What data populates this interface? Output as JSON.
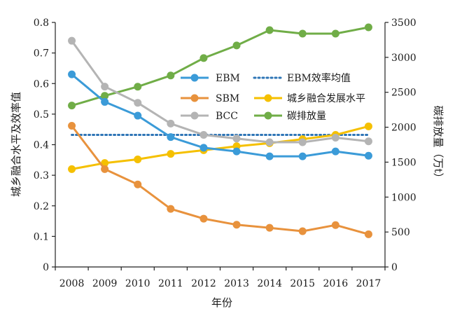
{
  "chart_data": {
    "type": "line",
    "xlabel": "年份",
    "ylabel_left": "城乡融合水平及效率值",
    "ylabel_right": "碳排放量（万t）",
    "x": [
      "2008",
      "2009",
      "2010",
      "2011",
      "2012",
      "2013",
      "2014",
      "2015",
      "2016",
      "2017"
    ],
    "ylim_left": [
      0,
      0.8
    ],
    "yticks_left": [
      "0",
      "0.1",
      "0.2",
      "0.3",
      "0.4",
      "0.5",
      "0.6",
      "0.7",
      "0.8"
    ],
    "ylim_right": [
      0,
      3500
    ],
    "yticks_right": [
      "0",
      "500",
      "1000",
      "1500",
      "2000",
      "2500",
      "3000",
      "3500"
    ],
    "grid": false,
    "legend_position": "center-right",
    "series": [
      {
        "name": "EBM",
        "axis": "left",
        "color": "#3b9bd8",
        "marker": "circle",
        "values": [
          0.63,
          0.54,
          0.495,
          0.425,
          0.39,
          0.378,
          0.362,
          0.362,
          0.378,
          0.364
        ]
      },
      {
        "name": "SBM",
        "axis": "left",
        "color": "#e8923d",
        "marker": "circle",
        "values": [
          0.462,
          0.32,
          0.27,
          0.19,
          0.158,
          0.138,
          0.128,
          0.117,
          0.137,
          0.107
        ]
      },
      {
        "name": "BCC",
        "axis": "left",
        "color": "#b4b4b4",
        "marker": "circle",
        "values": [
          0.74,
          0.59,
          0.537,
          0.469,
          0.432,
          0.42,
          0.408,
          0.408,
          0.423,
          0.411
        ]
      },
      {
        "name": "EBM效率均值",
        "axis": "left",
        "color": "#2e75b6",
        "marker": "none",
        "dash": "dotted",
        "values": [
          0.432,
          0.432,
          0.432,
          0.432,
          0.432,
          0.432,
          0.432,
          0.432,
          0.432,
          0.432
        ]
      },
      {
        "name": "城乡融合发展水平",
        "axis": "left",
        "color": "#f5c000",
        "marker": "circle",
        "values": [
          0.32,
          0.34,
          0.352,
          0.37,
          0.382,
          0.395,
          0.405,
          0.418,
          0.432,
          0.46
        ]
      },
      {
        "name": "碳排放量",
        "axis": "right",
        "color": "#70ad47",
        "marker": "circle",
        "values": [
          2310,
          2450,
          2580,
          2740,
          2990,
          3170,
          3390,
          3340,
          3340,
          3430
        ]
      }
    ]
  }
}
